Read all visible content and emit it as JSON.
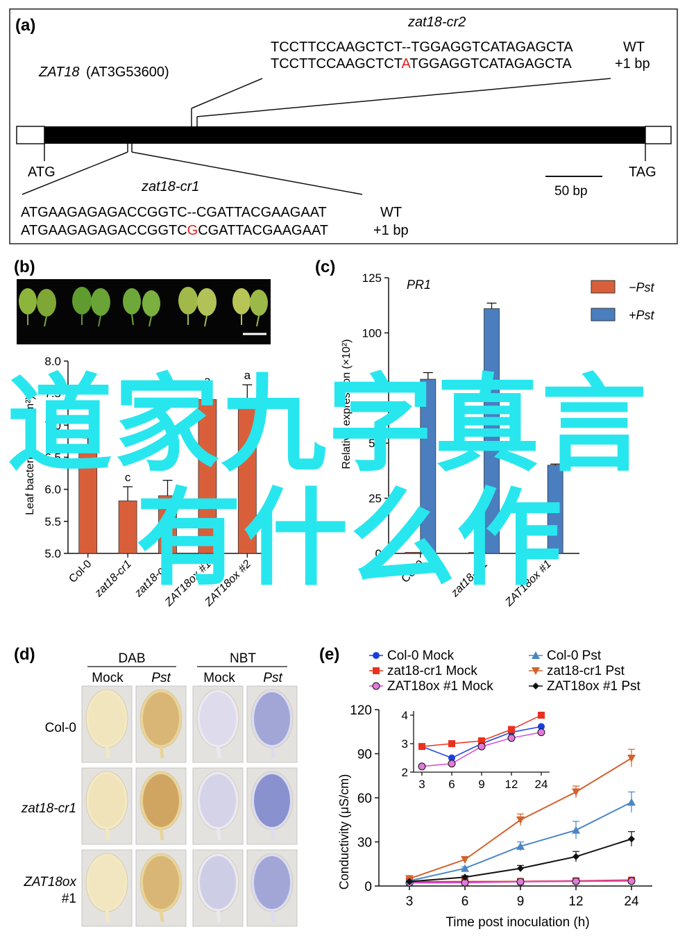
{
  "panel_labels": {
    "a": "(a)",
    "b": "(b)",
    "c": "(c)",
    "d": "(d)",
    "e": "(e)"
  },
  "panel_a": {
    "gene": "ZAT18",
    "locus": "(AT3G53600)",
    "cr2": {
      "name": "zat18-cr2",
      "wt_seq": "TCCTTCCAAGCTCT--TGGAGGTCATAGAGCTA",
      "mut_seq_before": "TCCTTCCAAGCTCT",
      "mut_seq_insert": "A",
      "mut_seq_after": "TGGAGGTCATAGAGCTA",
      "wt_label": "WT",
      "mut_label": "+1 bp"
    },
    "cr1": {
      "name": "zat18-cr1",
      "wt_seq": "ATGAAGAGAGACCGGTC--CGATTACGAAGAAT",
      "mut_seq_before": "ATGAAGAGAGACCGGTC",
      "mut_seq_insert": "G",
      "mut_seq_after": "CGATTACGAAGAAT",
      "wt_label": "WT",
      "mut_label": "+1 bp"
    },
    "start_codon": "ATG",
    "stop_codon": "TAG",
    "scale_bar": "50 bp"
  },
  "panel_b": {
    "ylabel": "Leaf bacteria (CFU/cm²)",
    "chart_data": {
      "type": "bar",
      "categories": [
        "Col-0",
        "zat18-cr1",
        "zat18-cr2",
        "ZAT18ox #1",
        "ZAT18ox #2"
      ],
      "values": [
        6.7,
        5.82,
        5.9,
        7.4,
        7.38
      ],
      "errors": [
        0.1,
        0.22,
        0.24,
        0.15,
        0.25
      ],
      "letters": [
        "",
        "c",
        "",
        "a",
        "a"
      ],
      "ylim": [
        5.0,
        8.0
      ],
      "yticks": [
        "5.0",
        "5.5",
        "6.0",
        "6.5",
        "7.0",
        "7.5",
        "8.0"
      ],
      "color": "#d95f3b"
    }
  },
  "panel_c": {
    "ylabel": "Relative expression (×10²)",
    "gene": "PR1",
    "legend": [
      "−Pst",
      "+Pst"
    ],
    "chart_data": {
      "type": "bar",
      "categories": [
        "Col-0",
        "zat18-cr1",
        "ZAT18ox #1"
      ],
      "series": [
        {
          "name": "−Pst",
          "values": [
            0.5,
            0.5,
            0.5
          ],
          "color": "#d95f3b"
        },
        {
          "name": "+Pst",
          "values": [
            79,
            111,
            40
          ],
          "errors": [
            3,
            2.5,
            0.5
          ],
          "color": "#4a7ebf"
        }
      ],
      "ylim": [
        0,
        125
      ],
      "yticks": [
        "0",
        "25",
        "50",
        "75",
        "100",
        "125"
      ]
    }
  },
  "panel_d": {
    "groups": [
      "DAB",
      "NBT"
    ],
    "columns": [
      "Mock",
      "Pst",
      "Mock",
      "Pst"
    ],
    "rows": [
      "Col-0",
      "zat18-cr1",
      "ZAT18ox\n#1"
    ],
    "row_labels": [
      "Col-0",
      "zat18-cr1",
      "ZAT18ox",
      "#1"
    ]
  },
  "panel_e": {
    "xlabel": "Time post inoculation (h)",
    "ylabel": "Conductivity (μS/cm)",
    "legend": [
      "Col-0 Mock",
      "zat18-cr1 Mock",
      "ZAT18ox #1 Mock",
      "Col-0 Pst",
      "zat18-cr1 Pst",
      "ZAT18ox #1 Pst"
    ],
    "chart_data": {
      "type": "line",
      "x": [
        "3",
        "6",
        "9",
        "12",
        "24"
      ],
      "ylim": [
        0,
        120
      ],
      "yticks": [
        "0",
        "30",
        "60",
        "90",
        "120"
      ],
      "series": [
        {
          "name": "Col-0 Mock",
          "values": [
            2.9,
            2.5,
            3.0,
            3.4,
            3.6
          ],
          "color": "#1a3ee0",
          "marker": "circle"
        },
        {
          "name": "zat18-cr1 Mock",
          "values": [
            2.9,
            3.0,
            3.1,
            3.5,
            4.0
          ],
          "color": "#e8321e",
          "marker": "square"
        },
        {
          "name": "ZAT18ox #1 Mock",
          "values": [
            2.2,
            2.3,
            2.9,
            3.2,
            3.4
          ],
          "color": "#d24ad8",
          "marker": "circle-open"
        },
        {
          "name": "Col-0 Pst",
          "values": [
            3.5,
            12,
            27,
            38,
            57
          ],
          "errors": [
            0.5,
            1,
            3,
            6,
            7
          ],
          "color": "#4a86c6",
          "marker": "triangle"
        },
        {
          "name": "zat18-cr1 Pst",
          "values": [
            5,
            18,
            45,
            64,
            87
          ],
          "errors": [
            0.5,
            2,
            4,
            4,
            6
          ],
          "color": "#d2622e",
          "marker": "triangle-down"
        },
        {
          "name": "ZAT18ox #1 Pst",
          "values": [
            3,
            6,
            12,
            20,
            32
          ],
          "errors": [
            0.5,
            1,
            2,
            3.5,
            5
          ],
          "color": "#111111",
          "marker": "diamond"
        }
      ],
      "inset": {
        "ylim": [
          2,
          4
        ],
        "yticks": [
          "2",
          "3",
          "4"
        ],
        "x": [
          "3",
          "6",
          "9",
          "12",
          "24"
        ]
      }
    }
  },
  "overlay": {
    "line1": "道家九字真言",
    "line2": "有什么作"
  }
}
